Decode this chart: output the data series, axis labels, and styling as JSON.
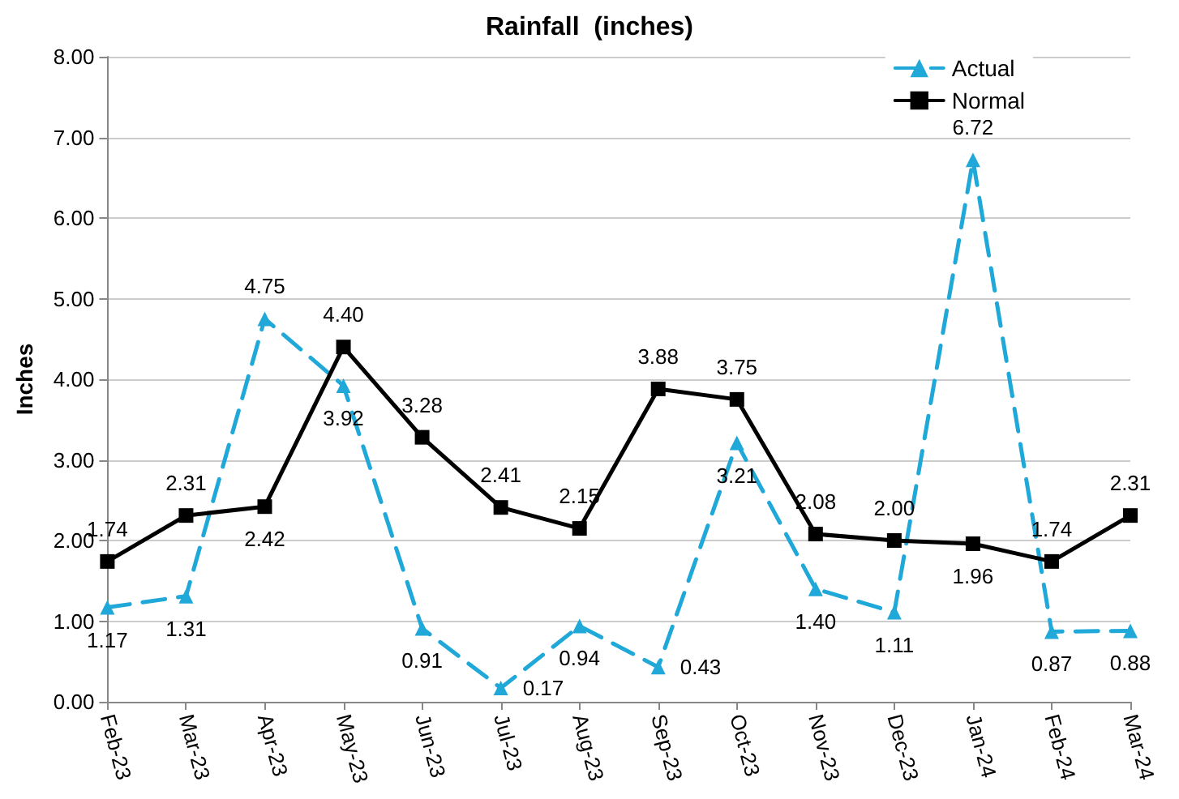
{
  "chart_data": {
    "type": "line",
    "title": "Rainfall  (inches)",
    "ylabel": "Inches",
    "categories": [
      "Feb-23",
      "Mar-23",
      "Apr-23",
      "May-23",
      "Jun-23",
      "Jul-23",
      "Aug-23",
      "Sep-23",
      "Oct-23",
      "Nov-23",
      "Dec-23",
      "Jan-24",
      "Feb-24",
      "Mar-24"
    ],
    "series": [
      {
        "name": "Actual",
        "color": "#1fa8d8",
        "marker": "triangle",
        "line_style": "dashed",
        "values": [
          1.17,
          1.31,
          4.75,
          3.92,
          0.91,
          0.17,
          0.94,
          0.43,
          3.21,
          1.4,
          1.11,
          6.72,
          0.87,
          0.88
        ],
        "value_labels": [
          "1.17",
          "1.31",
          "4.75",
          "3.92",
          "0.91",
          "0.17",
          "0.94",
          "0.43",
          "3.21",
          "1.40",
          "1.11",
          "6.72",
          "0.87",
          "0.88"
        ]
      },
      {
        "name": "Normal",
        "color": "#000000",
        "marker": "square",
        "line_style": "solid",
        "values": [
          1.74,
          2.31,
          2.42,
          4.4,
          3.28,
          2.41,
          2.15,
          3.88,
          3.75,
          2.08,
          2.0,
          1.96,
          1.74,
          2.31
        ],
        "value_labels": [
          "1.74",
          "2.31",
          "2.42",
          "4.40",
          "3.28",
          "2.41",
          "2.15",
          "3.88",
          "3.75",
          "2.08",
          "2.00",
          "1.96",
          "1.74",
          "2.31"
        ]
      }
    ],
    "ylim": [
      0,
      8
    ],
    "yticks": [
      {
        "value": 0,
        "label": "0.00"
      },
      {
        "value": 1,
        "label": "1.00"
      },
      {
        "value": 2,
        "label": "2.00"
      },
      {
        "value": 3,
        "label": "3.00"
      },
      {
        "value": 4,
        "label": "4.00"
      },
      {
        "value": 5,
        "label": "5.00"
      },
      {
        "value": 6,
        "label": "6.00"
      },
      {
        "value": 7,
        "label": "7.00"
      },
      {
        "value": 8,
        "label": "8.00"
      }
    ],
    "grid": "y",
    "legend": "top right"
  }
}
